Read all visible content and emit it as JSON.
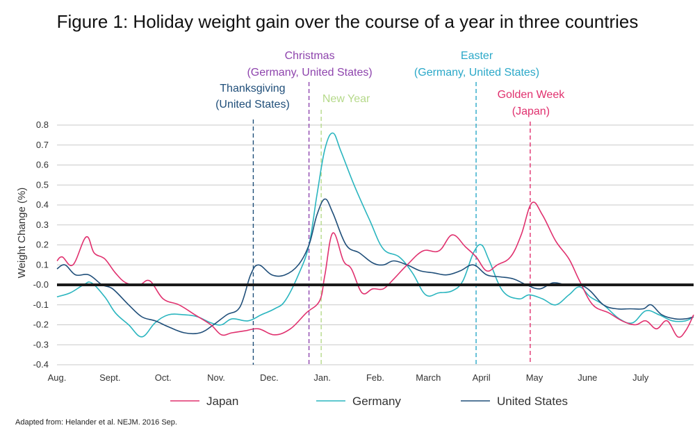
{
  "chart_data": {
    "type": "line",
    "title": "Figure 1: Holiday weight gain over the course of a year in three countries",
    "ylabel": "Weight Change (%)",
    "xlabel": "",
    "ylim": [
      -0.4,
      0.85
    ],
    "xlim": [
      0,
      12
    ],
    "yticks": [
      0.8,
      0.7,
      0.6,
      0.5,
      0.4,
      0.3,
      0.2,
      0.1,
      -0.0,
      -0.1,
      -0.2,
      -0.3,
      -0.4
    ],
    "ytick_labels": [
      "0.8",
      "0.7",
      "0.6",
      "0.5",
      "0.4",
      "0.3",
      "0.2",
      "0.1",
      "-0.0",
      "-0.1",
      "-0.2",
      "-0.3",
      "-0.4"
    ],
    "grid": true,
    "reference_line": 0,
    "categories": [
      "Aug.",
      "Sept.",
      "Oct.",
      "Nov.",
      "Dec.",
      "Jan.",
      "Feb.",
      "March",
      "April",
      "May",
      "June",
      "July"
    ],
    "category_positions": [
      0,
      1,
      2,
      3,
      4,
      5,
      6,
      7,
      8,
      9,
      10,
      11
    ],
    "series": [
      {
        "name": "Japan",
        "color": "#e0306e",
        "points": [
          [
            0,
            0.12
          ],
          [
            0.1,
            0.14
          ],
          [
            0.3,
            0.1
          ],
          [
            0.55,
            0.24
          ],
          [
            0.7,
            0.16
          ],
          [
            0.9,
            0.13
          ],
          [
            1.1,
            0.06
          ],
          [
            1.3,
            0.01
          ],
          [
            1.55,
            0.0
          ],
          [
            1.75,
            0.02
          ],
          [
            2.0,
            -0.07
          ],
          [
            2.3,
            -0.1
          ],
          [
            2.6,
            -0.15
          ],
          [
            2.9,
            -0.2
          ],
          [
            3.1,
            -0.25
          ],
          [
            3.3,
            -0.24
          ],
          [
            3.55,
            -0.23
          ],
          [
            3.8,
            -0.22
          ],
          [
            4.1,
            -0.25
          ],
          [
            4.4,
            -0.22
          ],
          [
            4.7,
            -0.14
          ],
          [
            4.95,
            -0.08
          ],
          [
            5.05,
            0.05
          ],
          [
            5.2,
            0.26
          ],
          [
            5.4,
            0.12
          ],
          [
            5.55,
            0.08
          ],
          [
            5.75,
            -0.04
          ],
          [
            5.95,
            -0.02
          ],
          [
            6.15,
            -0.02
          ],
          [
            6.35,
            0.03
          ],
          [
            6.6,
            0.1
          ],
          [
            6.9,
            0.17
          ],
          [
            7.2,
            0.17
          ],
          [
            7.45,
            0.25
          ],
          [
            7.7,
            0.19
          ],
          [
            7.9,
            0.14
          ],
          [
            8.1,
            0.07
          ],
          [
            8.3,
            0.1
          ],
          [
            8.55,
            0.14
          ],
          [
            8.75,
            0.25
          ],
          [
            8.95,
            0.41
          ],
          [
            9.15,
            0.35
          ],
          [
            9.4,
            0.22
          ],
          [
            9.65,
            0.13
          ],
          [
            9.85,
            0.02
          ],
          [
            10.1,
            -0.1
          ],
          [
            10.4,
            -0.14
          ],
          [
            10.65,
            -0.18
          ],
          [
            10.9,
            -0.2
          ],
          [
            11.1,
            -0.18
          ],
          [
            11.3,
            -0.22
          ],
          [
            11.5,
            -0.18
          ],
          [
            11.7,
            -0.26
          ],
          [
            11.85,
            -0.23
          ],
          [
            12.0,
            -0.15
          ]
        ]
      },
      {
        "name": "Germany",
        "color": "#2ab5bf",
        "points": [
          [
            0,
            -0.06
          ],
          [
            0.25,
            -0.04
          ],
          [
            0.5,
            0.0
          ],
          [
            0.65,
            0.01
          ],
          [
            0.9,
            -0.06
          ],
          [
            1.1,
            -0.14
          ],
          [
            1.35,
            -0.2
          ],
          [
            1.6,
            -0.26
          ],
          [
            1.85,
            -0.19
          ],
          [
            2.1,
            -0.15
          ],
          [
            2.4,
            -0.15
          ],
          [
            2.65,
            -0.16
          ],
          [
            2.9,
            -0.19
          ],
          [
            3.1,
            -0.2
          ],
          [
            3.3,
            -0.17
          ],
          [
            3.6,
            -0.18
          ],
          [
            3.85,
            -0.15
          ],
          [
            4.1,
            -0.12
          ],
          [
            4.3,
            -0.08
          ],
          [
            4.55,
            0.05
          ],
          [
            4.75,
            0.2
          ],
          [
            4.9,
            0.45
          ],
          [
            5.05,
            0.68
          ],
          [
            5.2,
            0.76
          ],
          [
            5.35,
            0.67
          ],
          [
            5.6,
            0.5
          ],
          [
            5.9,
            0.32
          ],
          [
            6.15,
            0.18
          ],
          [
            6.45,
            0.14
          ],
          [
            6.7,
            0.06
          ],
          [
            6.95,
            -0.05
          ],
          [
            7.2,
            -0.04
          ],
          [
            7.45,
            -0.03
          ],
          [
            7.65,
            0.02
          ],
          [
            7.85,
            0.16
          ],
          [
            8.0,
            0.2
          ],
          [
            8.15,
            0.12
          ],
          [
            8.4,
            -0.03
          ],
          [
            8.7,
            -0.07
          ],
          [
            8.9,
            -0.05
          ],
          [
            9.15,
            -0.07
          ],
          [
            9.4,
            -0.1
          ],
          [
            9.65,
            -0.05
          ],
          [
            9.85,
            -0.01
          ],
          [
            10.05,
            -0.06
          ],
          [
            10.3,
            -0.1
          ],
          [
            10.6,
            -0.17
          ],
          [
            10.85,
            -0.19
          ],
          [
            11.1,
            -0.13
          ],
          [
            11.35,
            -0.15
          ],
          [
            11.6,
            -0.18
          ],
          [
            11.85,
            -0.18
          ],
          [
            12.0,
            -0.16
          ]
        ]
      },
      {
        "name": "United States",
        "color": "#1f4e79",
        "points": [
          [
            0,
            0.08
          ],
          [
            0.15,
            0.1
          ],
          [
            0.35,
            0.05
          ],
          [
            0.6,
            0.05
          ],
          [
            0.85,
            0.0
          ],
          [
            1.05,
            -0.02
          ],
          [
            1.35,
            -0.1
          ],
          [
            1.6,
            -0.16
          ],
          [
            1.85,
            -0.18
          ],
          [
            2.1,
            -0.21
          ],
          [
            2.4,
            -0.24
          ],
          [
            2.7,
            -0.24
          ],
          [
            2.95,
            -0.2
          ],
          [
            3.2,
            -0.15
          ],
          [
            3.45,
            -0.11
          ],
          [
            3.65,
            0.05
          ],
          [
            3.8,
            0.1
          ],
          [
            4.05,
            0.05
          ],
          [
            4.3,
            0.05
          ],
          [
            4.55,
            0.1
          ],
          [
            4.75,
            0.2
          ],
          [
            4.9,
            0.35
          ],
          [
            5.05,
            0.43
          ],
          [
            5.2,
            0.36
          ],
          [
            5.45,
            0.2
          ],
          [
            5.7,
            0.16
          ],
          [
            5.95,
            0.11
          ],
          [
            6.15,
            0.1
          ],
          [
            6.35,
            0.12
          ],
          [
            6.6,
            0.1
          ],
          [
            6.85,
            0.07
          ],
          [
            7.1,
            0.06
          ],
          [
            7.35,
            0.05
          ],
          [
            7.6,
            0.07
          ],
          [
            7.85,
            0.1
          ],
          [
            8.1,
            0.05
          ],
          [
            8.35,
            0.04
          ],
          [
            8.6,
            0.03
          ],
          [
            8.85,
            0.0
          ],
          [
            9.1,
            -0.02
          ],
          [
            9.35,
            0.01
          ],
          [
            9.6,
            0.0
          ],
          [
            9.85,
            0.0
          ],
          [
            10.05,
            -0.03
          ],
          [
            10.3,
            -0.1
          ],
          [
            10.55,
            -0.12
          ],
          [
            10.8,
            -0.12
          ],
          [
            11.05,
            -0.12
          ],
          [
            11.2,
            -0.1
          ],
          [
            11.4,
            -0.15
          ],
          [
            11.65,
            -0.17
          ],
          [
            11.85,
            -0.17
          ],
          [
            12.0,
            -0.16
          ]
        ]
      }
    ],
    "holidays": [
      {
        "name": "Thanksgiving",
        "subtitle": "(United States)",
        "x": 3.7,
        "color": "#1f4e79"
      },
      {
        "name": "Christmas",
        "subtitle": "(Germany, United States)",
        "x": 4.75,
        "color": "#8e44ad"
      },
      {
        "name": "New Year",
        "subtitle": "",
        "x": 4.98,
        "color": "#b5d98a"
      },
      {
        "name": "Easter",
        "subtitle": "(Germany, United States)",
        "x": 7.9,
        "color": "#2aa8c8"
      },
      {
        "name": "Golden Week",
        "subtitle": "(Japan)",
        "x": 8.92,
        "color": "#e0306e"
      }
    ],
    "legend": [
      "Japan",
      "Germany",
      "United States"
    ],
    "legend_position": "bottom",
    "source": "Adapted from: Helander et al. NEJM. 2016 Sep."
  }
}
